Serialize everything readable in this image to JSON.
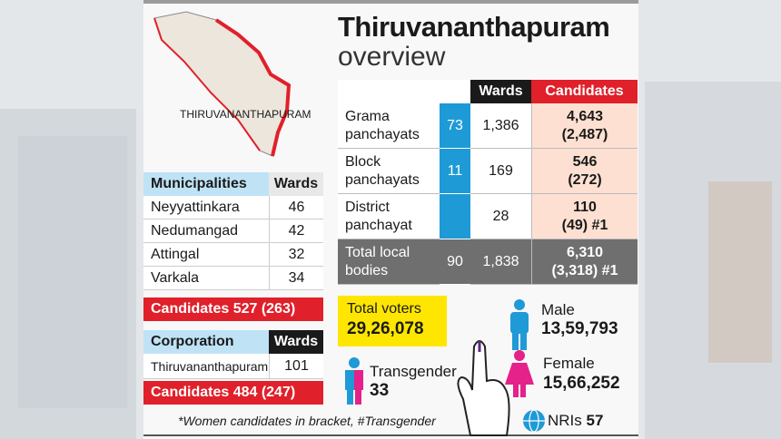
{
  "map": {
    "label": "THIRUVANANTHAPURAM"
  },
  "header": {
    "title": "Thiruvananthapuram",
    "subtitle": "overview"
  },
  "local_bodies": {
    "headers": [
      "Wards",
      "Candidates"
    ],
    "rows": [
      {
        "label": "Grama panchayats",
        "count": "73",
        "wards": "1,386",
        "candidates": "4,643",
        "women": "(2,487)"
      },
      {
        "label": "Block panchayats",
        "count": "11",
        "wards": "169",
        "candidates": "546",
        "women": "(272)"
      },
      {
        "label": "District panchayat",
        "wards": "28",
        "candidates": "110",
        "women": "(49) #1"
      },
      {
        "label": "Total local bodies",
        "count": "90",
        "wards": "1,838",
        "candidates": "6,310",
        "women": "(3,318) #1"
      }
    ]
  },
  "municipalities": {
    "headers": [
      "Municipalities",
      "Wards"
    ],
    "rows": [
      [
        "Neyyattinkara",
        "46"
      ],
      [
        "Nedumangad",
        "42"
      ],
      [
        "Attingal",
        "32"
      ],
      [
        "Varkala",
        "34"
      ]
    ],
    "candidates": "Candidates 527 (263)"
  },
  "corporation": {
    "headers": [
      "Corporation",
      "Wards"
    ],
    "rows": [
      [
        "Thiruvananthapuram",
        "101"
      ]
    ],
    "candidates": "Candidates 484 (247)"
  },
  "voters": {
    "total_label": "Total voters",
    "total": "29,26,078",
    "male_label": "Male",
    "male": "13,59,793",
    "female_label": "Female",
    "female": "15,66,252",
    "transgender_label": "Transgender",
    "transgender": "33",
    "nri_label": "NRIs",
    "nri": "57"
  },
  "footnote": "*Women candidates in bracket, #Transgender"
}
